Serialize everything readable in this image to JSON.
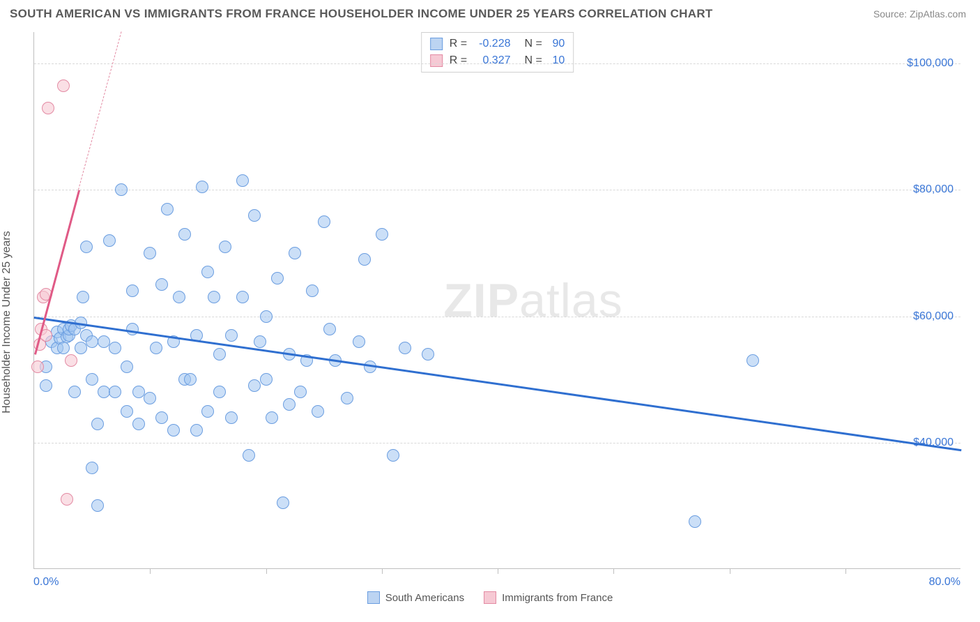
{
  "title": "SOUTH AMERICAN VS IMMIGRANTS FROM FRANCE HOUSEHOLDER INCOME UNDER 25 YEARS CORRELATION CHART",
  "source_label": "Source:",
  "source_name": "ZipAtlas.com",
  "watermark": {
    "bold": "ZIP",
    "light": "atlas"
  },
  "chart": {
    "type": "scatter",
    "ylabel": "Householder Income Under 25 years",
    "xlim": [
      0,
      80
    ],
    "ylim": [
      20000,
      105000
    ],
    "x_axis": {
      "min_label": "0.0%",
      "max_label": "80.0%",
      "tick_step": 10
    },
    "y_ticks": [
      {
        "v": 40000,
        "label": "$40,000"
      },
      {
        "v": 60000,
        "label": "$60,000"
      },
      {
        "v": 80000,
        "label": "$80,000"
      },
      {
        "v": 100000,
        "label": "$100,000"
      }
    ],
    "background_color": "#ffffff",
    "grid_color": "#d8d8d8",
    "axis_color": "#bfbfbf",
    "tick_label_color": "#3a76d6",
    "stats": [
      {
        "swatch_fill": "#bcd4f2",
        "swatch_stroke": "#6a9de0",
        "r": "-0.228",
        "n": "90"
      },
      {
        "swatch_fill": "#f6c9d4",
        "swatch_stroke": "#e38aa3",
        "r": "0.327",
        "n": "10"
      }
    ],
    "legend": [
      {
        "label": "South Americans",
        "fill": "#bcd4f2",
        "stroke": "#6a9de0"
      },
      {
        "label": "Immigrants from France",
        "fill": "#f6c9d4",
        "stroke": "#e38aa3"
      }
    ],
    "series": [
      {
        "name": "South Americans",
        "marker_fill": "rgba(160,196,240,0.55)",
        "marker_stroke": "#6a9de0",
        "marker_size": 18,
        "trend": {
          "x1": 0,
          "y1": 60000,
          "x2": 80,
          "y2": 39000,
          "color": "#2f6fd0",
          "width": 3,
          "dash": "solid"
        },
        "points": [
          [
            1,
            49000
          ],
          [
            1,
            52000
          ],
          [
            1.5,
            56000
          ],
          [
            2,
            55000
          ],
          [
            2,
            57500
          ],
          [
            2.2,
            56500
          ],
          [
            2.5,
            55000
          ],
          [
            2.5,
            58000
          ],
          [
            2.8,
            56800
          ],
          [
            3,
            57000
          ],
          [
            3,
            58000
          ],
          [
            3.2,
            58500
          ],
          [
            3.5,
            48000
          ],
          [
            3.5,
            58000
          ],
          [
            4,
            55000
          ],
          [
            4,
            59000
          ],
          [
            4.2,
            63000
          ],
          [
            4.5,
            57000
          ],
          [
            4.5,
            71000
          ],
          [
            5,
            36000
          ],
          [
            5,
            50000
          ],
          [
            5,
            56000
          ],
          [
            5.5,
            30000
          ],
          [
            5.5,
            43000
          ],
          [
            6,
            48000
          ],
          [
            6,
            56000
          ],
          [
            6.5,
            72000
          ],
          [
            7,
            48000
          ],
          [
            7,
            55000
          ],
          [
            7.5,
            80000
          ],
          [
            8,
            45000
          ],
          [
            8,
            52000
          ],
          [
            8.5,
            64000
          ],
          [
            8.5,
            58000
          ],
          [
            9,
            48000
          ],
          [
            9,
            43000
          ],
          [
            10,
            47000
          ],
          [
            10,
            70000
          ],
          [
            10.5,
            55000
          ],
          [
            11,
            44000
          ],
          [
            11,
            65000
          ],
          [
            11.5,
            77000
          ],
          [
            12,
            56000
          ],
          [
            12,
            42000
          ],
          [
            12.5,
            63000
          ],
          [
            13,
            50000
          ],
          [
            13,
            73000
          ],
          [
            13.5,
            50000
          ],
          [
            14,
            42000
          ],
          [
            14,
            57000
          ],
          [
            14.5,
            80500
          ],
          [
            15,
            45000
          ],
          [
            15,
            67000
          ],
          [
            15.5,
            63000
          ],
          [
            16,
            48000
          ],
          [
            16,
            54000
          ],
          [
            16.5,
            71000
          ],
          [
            17,
            44000
          ],
          [
            17,
            57000
          ],
          [
            18,
            81500
          ],
          [
            18,
            63000
          ],
          [
            18.5,
            38000
          ],
          [
            19,
            49000
          ],
          [
            19,
            76000
          ],
          [
            19.5,
            56000
          ],
          [
            20,
            50000
          ],
          [
            20,
            60000
          ],
          [
            20.5,
            44000
          ],
          [
            21,
            66000
          ],
          [
            21.5,
            30500
          ],
          [
            22,
            46000
          ],
          [
            22,
            54000
          ],
          [
            22.5,
            70000
          ],
          [
            23,
            48000
          ],
          [
            23.5,
            53000
          ],
          [
            24,
            64000
          ],
          [
            24.5,
            45000
          ],
          [
            25,
            75000
          ],
          [
            25.5,
            58000
          ],
          [
            26,
            53000
          ],
          [
            27,
            47000
          ],
          [
            28,
            56000
          ],
          [
            28.5,
            69000
          ],
          [
            29,
            52000
          ],
          [
            30,
            73000
          ],
          [
            31,
            38000
          ],
          [
            32,
            55000
          ],
          [
            34,
            54000
          ],
          [
            57,
            27500
          ],
          [
            62,
            53000
          ]
        ]
      },
      {
        "name": "Immigrants from France",
        "marker_fill": "rgba(246,201,212,0.6)",
        "marker_stroke": "#e38aa3",
        "marker_size": 18,
        "trend": {
          "x1": 0,
          "y1": 54000,
          "x2": 3.8,
          "y2": 80000,
          "color": "#e05a86",
          "width": 3,
          "dash": "solid"
        },
        "trend_ext": {
          "x1": 3.8,
          "y1": 80000,
          "x2": 7.5,
          "y2": 105000,
          "color": "#e38aa3",
          "width": 1,
          "dash": "dashed"
        },
        "points": [
          [
            0.3,
            52000
          ],
          [
            0.5,
            55500
          ],
          [
            0.6,
            58000
          ],
          [
            0.8,
            63000
          ],
          [
            1,
            63500
          ],
          [
            1,
            57000
          ],
          [
            1.2,
            93000
          ],
          [
            2.5,
            96500
          ],
          [
            2.8,
            31000
          ],
          [
            3.2,
            53000
          ]
        ]
      }
    ]
  }
}
